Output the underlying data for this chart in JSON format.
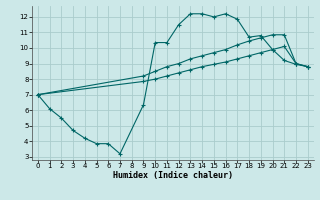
{
  "bg_color": "#cce8e8",
  "grid_color": "#aacccc",
  "line_color": "#006666",
  "xlabel": "Humidex (Indice chaleur)",
  "xlim": [
    -0.5,
    23.5
  ],
  "ylim": [
    2.8,
    12.7
  ],
  "xticks": [
    0,
    1,
    2,
    3,
    4,
    5,
    6,
    7,
    8,
    9,
    10,
    11,
    12,
    13,
    14,
    15,
    16,
    17,
    18,
    19,
    20,
    21,
    22,
    23
  ],
  "yticks": [
    3,
    4,
    5,
    6,
    7,
    8,
    9,
    10,
    11,
    12
  ],
  "curve_zigzag_x": [
    0,
    1,
    2,
    3,
    4,
    5,
    6,
    7,
    9,
    10,
    11,
    12,
    13,
    14,
    15,
    16,
    17,
    18,
    19,
    20,
    21,
    22,
    23
  ],
  "curve_zigzag_y": [
    7.0,
    6.1,
    5.5,
    4.7,
    4.2,
    3.85,
    3.85,
    3.2,
    6.35,
    10.35,
    10.35,
    11.5,
    12.2,
    12.2,
    12.0,
    12.2,
    11.85,
    10.7,
    10.8,
    9.9,
    9.2,
    8.95,
    8.8
  ],
  "curve_upper_x": [
    0,
    9,
    10,
    11,
    12,
    13,
    14,
    15,
    16,
    17,
    18,
    19,
    20,
    21,
    22,
    23
  ],
  "curve_upper_y": [
    7.0,
    8.2,
    8.5,
    8.8,
    9.0,
    9.3,
    9.5,
    9.7,
    9.9,
    10.2,
    10.45,
    10.65,
    10.85,
    10.85,
    9.0,
    8.8
  ],
  "curve_lower_x": [
    0,
    9,
    10,
    11,
    12,
    13,
    14,
    15,
    16,
    17,
    18,
    19,
    20,
    21,
    22,
    23
  ],
  "curve_lower_y": [
    7.0,
    7.85,
    8.0,
    8.2,
    8.4,
    8.6,
    8.8,
    8.95,
    9.1,
    9.3,
    9.5,
    9.7,
    9.9,
    10.1,
    9.0,
    8.8
  ],
  "lw": 0.8,
  "ms": 3.0,
  "mew": 0.8,
  "tick_labelsize": 5,
  "xlabel_fontsize": 6
}
